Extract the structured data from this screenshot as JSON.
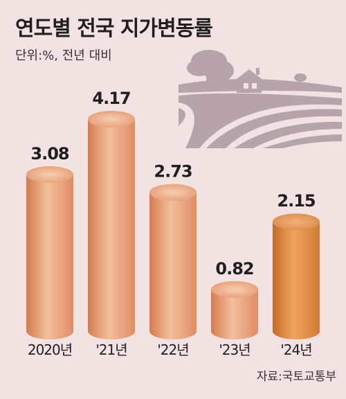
{
  "title": "연도별 전국 지가변동률",
  "subtitle": "단위:%, 전년 대비",
  "source": "자료:국토교통부",
  "colors": {
    "background": "#f2e2e2",
    "bar_light": "#f2bf9c",
    "bar_mid": "#e59a73",
    "bar_dark": "#d67c4e",
    "bar_accent_dark": "#c56a26",
    "illustration": "#b7a3aa"
  },
  "illustration": {
    "icon": "farmland-house-trees-icon"
  },
  "chart_data": {
    "type": "bar",
    "categories": [
      "2020년",
      "'21년",
      "'22년",
      "'23년",
      "'24년"
    ],
    "values": [
      3.08,
      4.17,
      2.73,
      0.82,
      2.15
    ],
    "value_labels": [
      "3.08",
      "4.17",
      "2.73",
      "0.82",
      "2.15"
    ],
    "title": "연도별 전국 지가변동률",
    "unit": "단위:%, 전년 대비",
    "highlight_index": 4,
    "ylim": [
      0,
      4.17
    ],
    "grid": false,
    "legend": "none"
  }
}
